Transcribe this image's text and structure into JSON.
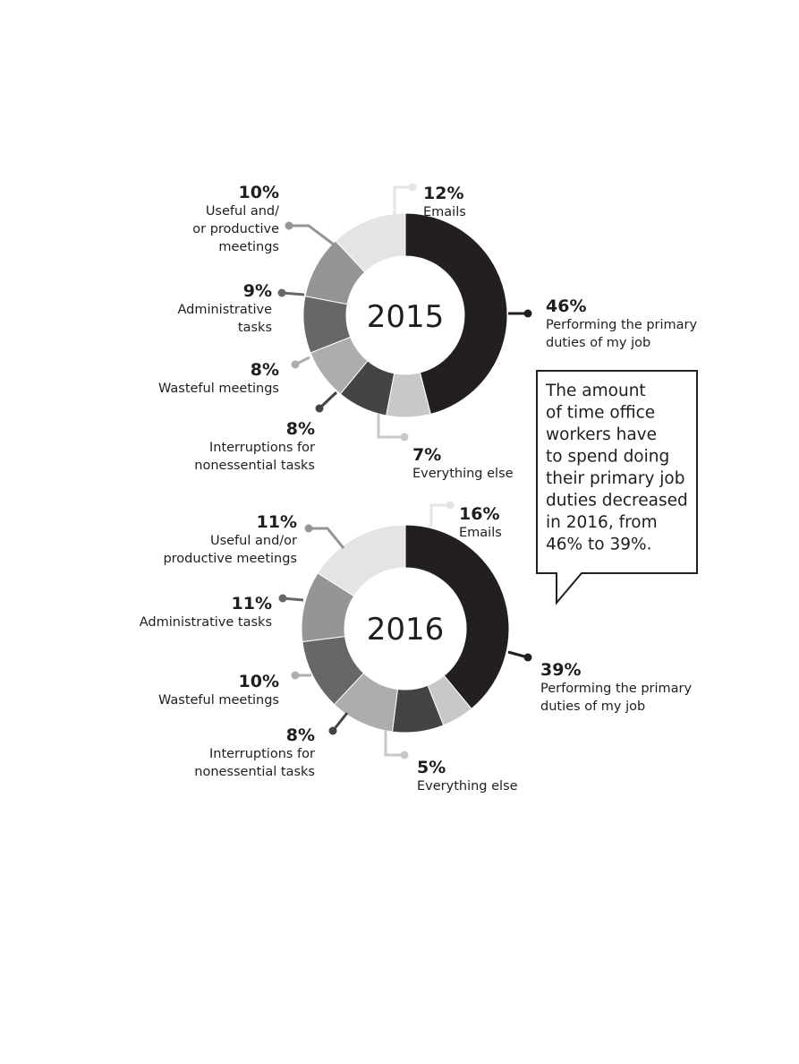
{
  "chart_data": [
    {
      "type": "pie",
      "title": "2015",
      "categories": [
        "Performing the primary duties of my job",
        "Everything else",
        "Interruptions for nonessential tasks",
        "Wasteful meetings",
        "Administrative tasks",
        "Useful and/or productive meetings",
        "Emails"
      ],
      "values": [
        46,
        7,
        8,
        8,
        9,
        10,
        12
      ],
      "value_labels": [
        "46%",
        "7%",
        "8%",
        "8%",
        "9%",
        "10%",
        "12%"
      ],
      "label_lines": [
        [
          "Performing the primary",
          "duties of my job"
        ],
        [
          "Everything else"
        ],
        [
          "Interruptions for",
          "nonessential tasks"
        ],
        [
          "Wasteful meetings"
        ],
        [
          "Administrative",
          "tasks"
        ],
        [
          "Useful and/",
          "or productive",
          "meetings"
        ],
        [
          "Emails"
        ]
      ],
      "colors": [
        "#231f20",
        "#c8c8ca",
        "#444446",
        "#adadaf",
        "#67676a",
        "#959597",
        "#e4e4e5"
      ]
    },
    {
      "type": "pie",
      "title": "2016",
      "categories": [
        "Performing the primary duties of my job",
        "Everything else",
        "Interruptions for nonessential tasks",
        "Wasteful meetings",
        "Administrative tasks",
        "Useful and/or productive meetings",
        "Emails"
      ],
      "values": [
        39,
        5,
        8,
        10,
        11,
        11,
        16
      ],
      "value_labels": [
        "39%",
        "5%",
        "8%",
        "10%",
        "11%",
        "11%",
        "16%"
      ],
      "label_lines": [
        [
          "Performing the primary",
          "duties of my job"
        ],
        [
          "Everything else"
        ],
        [
          "Interruptions for",
          "nonessential tasks"
        ],
        [
          "Wasteful meetings"
        ],
        [
          "Administrative tasks"
        ],
        [
          "Useful and/or",
          "productive meetings"
        ],
        [
          "Emails"
        ]
      ],
      "colors": [
        "#231f20",
        "#c8c8ca",
        "#444446",
        "#adadaf",
        "#67676a",
        "#959597",
        "#e4e4e5"
      ]
    }
  ],
  "callout": {
    "lines": [
      "The amount",
      "of time office",
      "workers have",
      "to spend doing",
      "their primary job",
      "duties decreased",
      "in 2016, from",
      "46% to 39%."
    ]
  }
}
